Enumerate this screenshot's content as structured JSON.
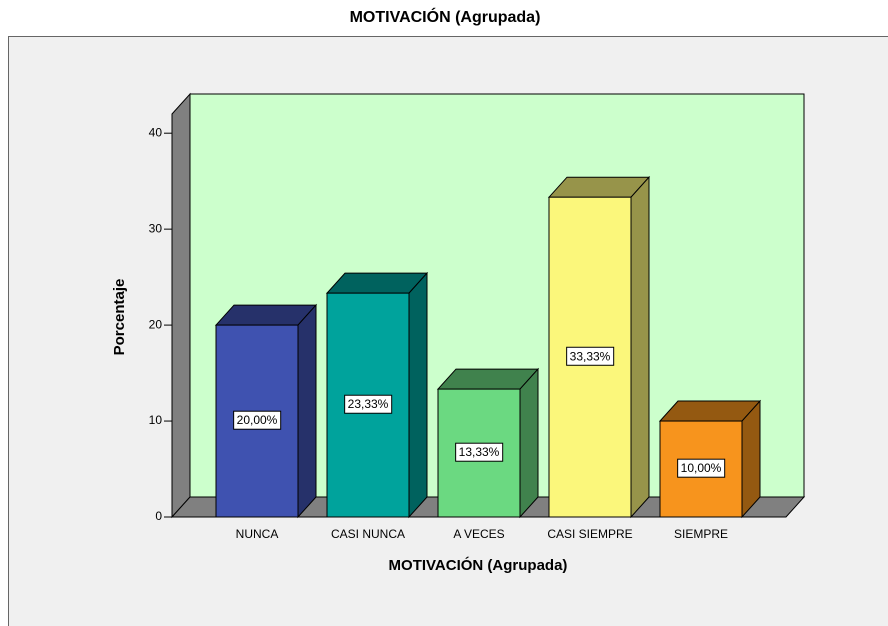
{
  "chart_data": {
    "type": "bar3d",
    "title": "MOTIVACIÓN (Agrupada)",
    "x_label": "MOTIVACIÓN (Agrupada)",
    "y_label": "Porcentaje",
    "categories": [
      "NUNCA",
      "CASI NUNCA",
      "A VECES",
      "CASI SIEMPRE",
      "SIEMPRE"
    ],
    "values": [
      20,
      23.33,
      13.33,
      33.33,
      10
    ],
    "value_labels": [
      "20,00%",
      "23,33%",
      "13,33%",
      "33,33%",
      "10,00%"
    ],
    "colors": [
      "#3f52b0",
      "#00a39c",
      "#6bd981",
      "#fbf77b",
      "#f7941d"
    ],
    "ylim": [
      0,
      42
    ],
    "yticks": [
      0,
      10,
      20,
      30,
      40
    ]
  }
}
